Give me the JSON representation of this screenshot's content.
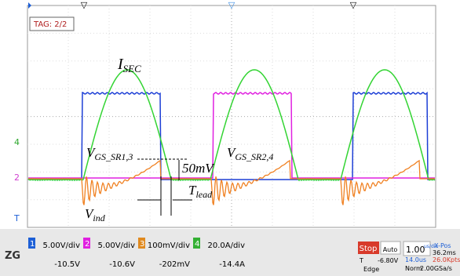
{
  "screen": {
    "tag": "TAG: 2/2",
    "markers": {
      "ch4": "4",
      "ch2": "2",
      "trigger": "T"
    },
    "annotations": {
      "i_sec": {
        "main": "I",
        "sub": "SEC"
      },
      "vgs_sr13": {
        "main": "V",
        "sub": "GS_SR1,3"
      },
      "delta": "50mV",
      "vgs_sr24": {
        "main": "V",
        "sub": "GS_SR2,4"
      },
      "t_lead": {
        "main": "T",
        "sub": "lead"
      },
      "v_ind": {
        "main": "V",
        "sub": "ind"
      }
    }
  },
  "status_bar": {
    "channels": [
      {
        "number": "1",
        "scale": "5.00V/div",
        "offset": "-10.5V"
      },
      {
        "number": "2",
        "scale": "5.00V/div",
        "offset": "-10.6V"
      },
      {
        "number": "3",
        "scale": "100mV/div",
        "offset": "-202mV"
      },
      {
        "number": "4",
        "scale": "20.0A/div",
        "offset": "-14.4A"
      }
    ],
    "state": "Stop",
    "mode": "Auto",
    "timebase": "1.00",
    "timebase_unit": "us/div",
    "xpos_label": "X-Pos",
    "xpos": "36.2ms",
    "trigger_label": "T",
    "trigger_level": "-6.80V",
    "delay": "14.0us",
    "points": "26.0Kpts",
    "trigger_type": "Edge",
    "trigger_mode": "Norm",
    "sample_rate": "2.00GSa/s"
  }
}
